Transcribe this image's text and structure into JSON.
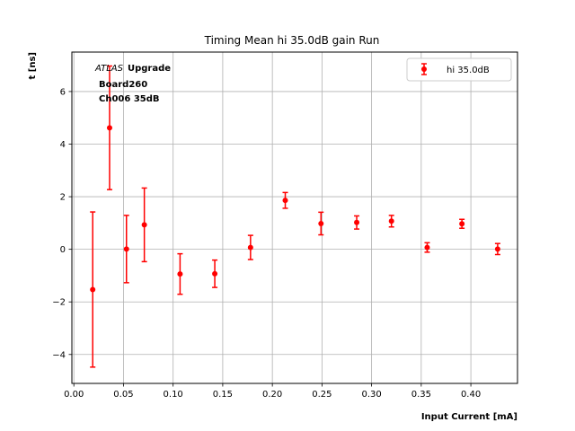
{
  "chart_data": {
    "type": "scatter",
    "title": "Timing Mean hi 35.0dB gain Run",
    "xlabel": "Input Current [mA]",
    "ylabel": "t [ns]",
    "xlim": [
      -0.002,
      0.447
    ],
    "ylim": [
      -5.1,
      7.5
    ],
    "x_ticks": [
      0.0,
      0.05,
      0.1,
      0.15,
      0.2,
      0.25,
      0.3,
      0.35,
      0.4
    ],
    "x_tick_labels": [
      "0.00",
      "0.05",
      "0.10",
      "0.15",
      "0.20",
      "0.25",
      "0.30",
      "0.35",
      "0.40"
    ],
    "y_ticks": [
      -4,
      -2,
      0,
      2,
      4,
      6
    ],
    "y_tick_labels": [
      "−4",
      "−2",
      "0",
      "2",
      "4",
      "6"
    ],
    "grid": true,
    "legend_position": "top-right",
    "annotation": {
      "atlas": "ATLAS",
      "upgrade": "Upgrade",
      "board": "Board260",
      "channel": "Ch006 35dB"
    },
    "series": [
      {
        "name": "hi 35.0dB",
        "color": "#ff0000",
        "x": [
          0.019,
          0.036,
          0.053,
          0.071,
          0.107,
          0.142,
          0.178,
          0.213,
          0.249,
          0.285,
          0.32,
          0.356,
          0.391,
          0.427
        ],
        "y": [
          -1.53,
          4.62,
          0.01,
          0.93,
          -0.94,
          -0.93,
          0.07,
          1.86,
          0.98,
          1.02,
          1.07,
          0.07,
          0.97,
          0.01
        ],
        "yerr": [
          2.95,
          2.35,
          1.28,
          1.4,
          0.77,
          0.52,
          0.46,
          0.3,
          0.43,
          0.25,
          0.22,
          0.18,
          0.17,
          0.21
        ]
      }
    ]
  }
}
